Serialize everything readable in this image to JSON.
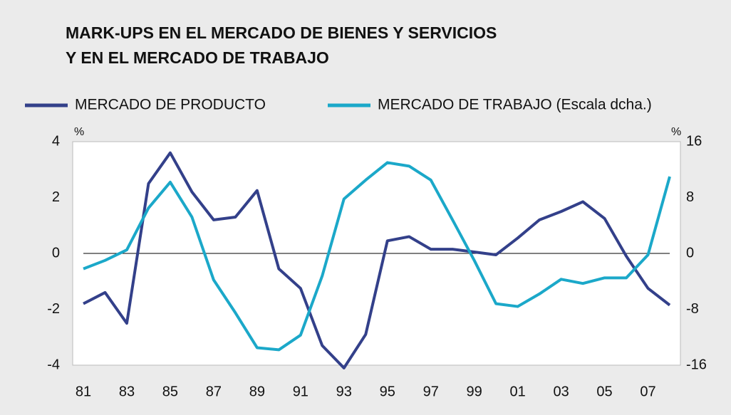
{
  "chart_data": {
    "type": "line",
    "title": [
      "MARK-UPS EN EL MERCADO DE BIENES Y SERVICIOS",
      "Y EN EL MERCADO DE TRABAJO"
    ],
    "y_unit": "%",
    "y2_unit": "%",
    "categories": [
      "81",
      null,
      "83",
      null,
      "85",
      null,
      "87",
      null,
      "89",
      null,
      "91",
      null,
      "93",
      null,
      "95",
      null,
      "97",
      null,
      "99",
      null,
      "01",
      null,
      "03",
      null,
      "05",
      null,
      "07",
      null
    ],
    "series": [
      {
        "name": "MERCADO DE PRODUCTO",
        "color": "#33408a",
        "axis": "y",
        "values": [
          -1.8,
          -1.4,
          -2.5,
          2.5,
          3.6,
          2.2,
          1.2,
          1.3,
          2.25,
          -0.55,
          -1.25,
          -3.3,
          -4.1,
          -2.9,
          0.45,
          0.6,
          0.15,
          0.15,
          0.05,
          -0.05,
          0.55,
          1.2,
          1.5,
          1.85,
          1.25,
          -0.1,
          -1.25,
          -1.85
        ]
      },
      {
        "name": "MERCADO DE TRABAJO (Escala dcha.)",
        "color": "#1ba8c9",
        "axis": "y2",
        "values": [
          -2.2,
          -1,
          0.5,
          6.5,
          10.2,
          5.2,
          -3.8,
          -8.5,
          -13.5,
          -13.8,
          -11.7,
          -3.2,
          7.8,
          10.5,
          13,
          12.5,
          10.5,
          4.8,
          -1,
          -7.2,
          -7.6,
          -5.8,
          -3.7,
          -4.3,
          -3.5,
          -3.5,
          -0.2,
          11
        ]
      }
    ],
    "ylim": [
      -4,
      4
    ],
    "yticks": [
      -4,
      -2,
      0,
      2,
      4
    ],
    "y2lim": [
      -16,
      16
    ],
    "y2ticks": [
      -16,
      -8,
      0,
      8,
      16
    ]
  }
}
